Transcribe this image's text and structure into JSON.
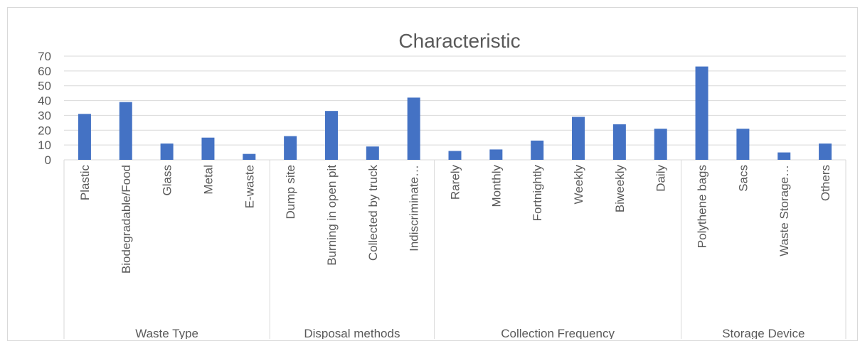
{
  "chart_data": {
    "type": "bar",
    "title": "Characteristic",
    "xlabel": "",
    "ylabel": "",
    "ylim": [
      0,
      70
    ],
    "yticks": [
      0,
      10,
      20,
      30,
      40,
      50,
      60,
      70
    ],
    "grid": true,
    "legend": "none",
    "bar_color": "#4472C4",
    "groups": [
      {
        "name": "Waste Type",
        "categories": [
          "Plastic",
          "Biodegradable/Food",
          "Glass",
          "Metal",
          "E-waste"
        ]
      },
      {
        "name": "Disposal methods",
        "categories": [
          "Dump site",
          "Burning in open pit",
          "Collected by truck",
          "Indiscriminate…"
        ]
      },
      {
        "name": "Collection Frequency",
        "categories": [
          "Rarely",
          "Monthly",
          "Fortnightly",
          "Weekly",
          "Biweekly",
          "Daily"
        ]
      },
      {
        "name": "Storage Device",
        "categories": [
          "Polythene bags",
          "Sacs",
          "Waste Storage…",
          "Others"
        ]
      }
    ],
    "values": [
      31,
      39,
      11,
      15,
      4,
      16,
      33,
      9,
      42,
      6,
      7,
      13,
      29,
      24,
      21,
      63,
      21,
      5,
      11
    ]
  }
}
